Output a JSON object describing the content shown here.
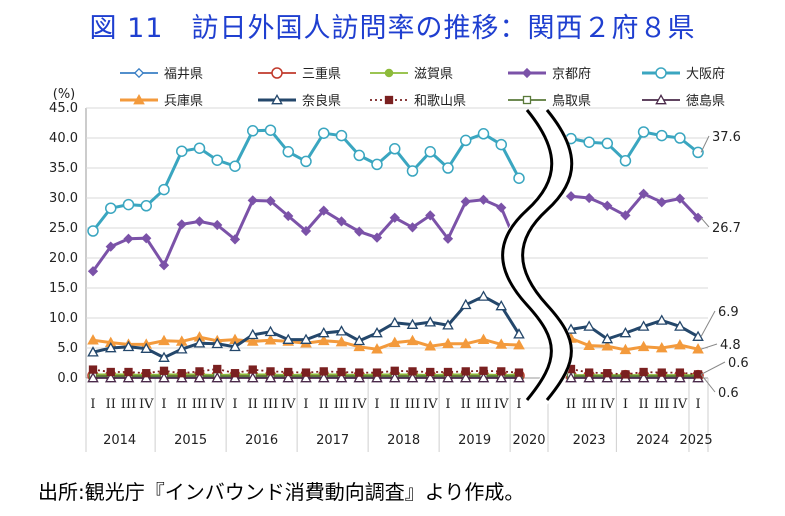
{
  "title": "図 11　訪日外国人訪問率の推移：関西２府８県",
  "source": "出所:観光庁『インバウンド消費動向調査』より作成。",
  "chart_data": {
    "type": "line",
    "ylabel": "(%)",
    "ylim": [
      0,
      45
    ],
    "yticks": [
      "45.0",
      "40.0",
      "35.0",
      "30.0",
      "25.0",
      "20.0",
      "15.0",
      "10.0",
      "5.0",
      "0.0"
    ],
    "years": [
      "2014",
      "2015",
      "2016",
      "2017",
      "2018",
      "2019",
      "2020",
      "2023",
      "2024",
      "2025"
    ],
    "x": [
      "2014-I",
      "2014-II",
      "2014-III",
      "2014-IV",
      "2015-I",
      "2015-II",
      "2015-III",
      "2015-IV",
      "2016-I",
      "2016-II",
      "2016-III",
      "2016-IV",
      "2017-I",
      "2017-II",
      "2017-III",
      "2017-IV",
      "2018-I",
      "2018-II",
      "2018-III",
      "2018-IV",
      "2019-I",
      "2019-II",
      "2019-III",
      "2019-IV",
      "2020-I",
      "2023-II",
      "2023-III",
      "2023-IV",
      "2024-I",
      "2024-II",
      "2024-III",
      "2024-IV",
      "2025-I"
    ],
    "quarter_labels": [
      "I",
      "II",
      "III",
      "IV",
      "I",
      "II",
      "III",
      "IV",
      "I",
      "II",
      "III",
      "IV",
      "I",
      "II",
      "III",
      "IV",
      "I",
      "II",
      "III",
      "IV",
      "I",
      "II",
      "III",
      "IV",
      "I",
      "II",
      "III",
      "IV",
      "I",
      "II",
      "III",
      "IV",
      "I"
    ],
    "end_labels": [
      "37.6",
      "26.7",
      "6.9",
      "4.8",
      "0.6",
      "0.6"
    ],
    "series": [
      {
        "name": "福井県",
        "color": "#3a7fc4",
        "marker": "diamond-open",
        "values": [
          0.1,
          0.1,
          0.1,
          0.1,
          0.1,
          0.1,
          0.1,
          0.1,
          0.1,
          0.1,
          0.1,
          0.1,
          0.1,
          0.1,
          0.1,
          0.1,
          0.1,
          0.1,
          0.1,
          0.1,
          0.1,
          0.1,
          0.1,
          0.1,
          0.1,
          0.1,
          0.1,
          0.1,
          0.1,
          0.1,
          0.1,
          0.1,
          0.1
        ]
      },
      {
        "name": "三重県",
        "color": "#c0392b",
        "marker": "circle-open",
        "values": [
          0.4,
          0.4,
          0.4,
          0.4,
          0.4,
          0.4,
          0.4,
          0.4,
          0.4,
          0.4,
          0.4,
          0.4,
          0.4,
          0.4,
          0.4,
          0.4,
          0.4,
          0.4,
          0.4,
          0.4,
          0.4,
          0.4,
          0.4,
          0.4,
          0.4,
          0.4,
          0.4,
          0.4,
          0.4,
          0.4,
          0.4,
          0.4,
          0.4
        ]
      },
      {
        "name": "滋賀県",
        "color": "#8dbb3a",
        "marker": "circle",
        "values": [
          0.6,
          0.6,
          0.6,
          0.5,
          0.6,
          0.6,
          0.6,
          0.5,
          0.6,
          0.6,
          0.6,
          0.5,
          0.6,
          0.6,
          0.6,
          0.5,
          0.6,
          0.6,
          0.6,
          0.5,
          0.6,
          0.6,
          0.6,
          0.5,
          0.6,
          0.5,
          0.5,
          0.5,
          0.5,
          0.5,
          0.5,
          0.5,
          0.5
        ]
      },
      {
        "name": "京都府",
        "color": "#7b52a8",
        "marker": "diamond",
        "values": [
          17.8,
          21.9,
          23.2,
          23.3,
          18.8,
          25.6,
          26.1,
          25.5,
          23.1,
          29.6,
          29.5,
          27.0,
          24.5,
          27.9,
          26.1,
          24.4,
          23.4,
          26.7,
          25.1,
          27.1,
          23.2,
          29.4,
          29.7,
          28.4,
          21.4,
          30.3,
          30.0,
          28.7,
          27.1,
          30.7,
          29.3,
          29.9,
          26.7
        ]
      },
      {
        "name": "大阪府",
        "color": "#3aa6c0",
        "marker": "circle-open",
        "values": [
          24.5,
          28.3,
          28.9,
          28.7,
          31.4,
          37.8,
          38.3,
          36.3,
          35.3,
          41.2,
          41.3,
          37.7,
          36.1,
          40.8,
          40.4,
          37.1,
          35.6,
          38.2,
          34.5,
          37.7,
          35.0,
          39.6,
          40.7,
          38.9,
          33.3,
          39.9,
          39.3,
          39.1,
          36.2,
          41.0,
          40.4,
          40.0,
          37.6
        ]
      },
      {
        "name": "兵庫県",
        "color": "#f39a3c",
        "marker": "triangle",
        "values": [
          6.3,
          5.9,
          5.6,
          5.6,
          6.2,
          6.1,
          6.8,
          6.2,
          6.4,
          6.1,
          6.3,
          6.1,
          5.8,
          6.2,
          6.0,
          5.2,
          4.8,
          5.9,
          6.2,
          5.3,
          5.7,
          5.7,
          6.4,
          5.6,
          5.5,
          6.6,
          5.4,
          5.3,
          4.7,
          5.2,
          5.0,
          5.5,
          4.8
        ]
      },
      {
        "name": "奈良県",
        "color": "#24476b",
        "marker": "triangle-open",
        "values": [
          4.3,
          5.0,
          5.2,
          4.9,
          3.4,
          4.8,
          5.8,
          5.7,
          5.2,
          7.2,
          7.7,
          6.4,
          6.4,
          7.5,
          7.8,
          6.2,
          7.5,
          9.2,
          8.9,
          9.3,
          8.8,
          12.2,
          13.6,
          12.0,
          7.3,
          8.1,
          8.6,
          6.5,
          7.5,
          8.6,
          9.6,
          8.6,
          6.9
        ]
      },
      {
        "name": "和歌山県",
        "color": "#7a2020",
        "marker": "square",
        "values": [
          1.4,
          1.0,
          1.0,
          0.8,
          1.2,
          0.8,
          1.1,
          1.5,
          0.8,
          1.4,
          1.1,
          1.0,
          0.9,
          1.1,
          1.0,
          0.9,
          0.9,
          1.2,
          1.1,
          1.0,
          1.0,
          1.1,
          1.2,
          1.1,
          0.9,
          1.5,
          0.9,
          0.8,
          0.6,
          1.0,
          0.9,
          0.9,
          0.6
        ]
      },
      {
        "name": "鳥取県",
        "color": "#5a7a3a",
        "marker": "square-open",
        "values": [
          0.3,
          0.3,
          0.3,
          0.3,
          0.3,
          0.3,
          0.3,
          0.3,
          0.3,
          0.3,
          0.3,
          0.3,
          0.3,
          0.3,
          0.3,
          0.3,
          0.3,
          0.3,
          0.3,
          0.3,
          0.3,
          0.3,
          0.3,
          0.3,
          0.3,
          0.3,
          0.3,
          0.3,
          0.3,
          0.3,
          0.3,
          0.3,
          0.3
        ]
      },
      {
        "name": "徳島県",
        "color": "#4a2a4a",
        "marker": "triangle-open",
        "values": [
          0.0,
          0.0,
          0.0,
          0.0,
          0.0,
          0.0,
          0.0,
          0.0,
          0.0,
          0.0,
          0.0,
          0.0,
          0.0,
          0.0,
          0.0,
          0.0,
          0.0,
          0.0,
          0.0,
          0.0,
          0.0,
          0.0,
          0.0,
          0.0,
          0.0,
          0.0,
          0.0,
          0.0,
          0.0,
          0.0,
          0.0,
          0.0,
          0.0
        ]
      }
    ],
    "grid": true,
    "legend": "top"
  }
}
